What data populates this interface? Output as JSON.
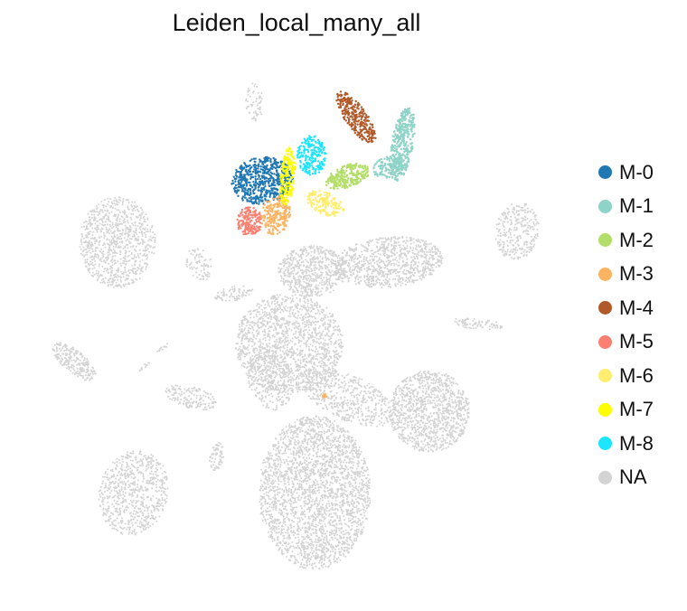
{
  "chart_data": {
    "type": "scatter",
    "title": "Leiden_local_many_all",
    "xlabel": "",
    "ylabel": "",
    "axes_visible": false,
    "grid": false,
    "legend_position": "right",
    "marker": "dot",
    "groups": [
      {
        "label": "M-0",
        "color": "#1f77b4"
      },
      {
        "label": "M-1",
        "color": "#8dd3c7"
      },
      {
        "label": "M-2",
        "color": "#b3de69"
      },
      {
        "label": "M-3",
        "color": "#fdb462"
      },
      {
        "label": "M-4",
        "color": "#b15928"
      },
      {
        "label": "M-5",
        "color": "#fb8072"
      },
      {
        "label": "M-6",
        "color": "#ffed6f"
      },
      {
        "label": "M-7",
        "color": "#ffff00"
      },
      {
        "label": "M-8",
        "color": "#1ce6ff"
      },
      {
        "label": "NA",
        "color": "#d3d3d3"
      }
    ]
  }
}
